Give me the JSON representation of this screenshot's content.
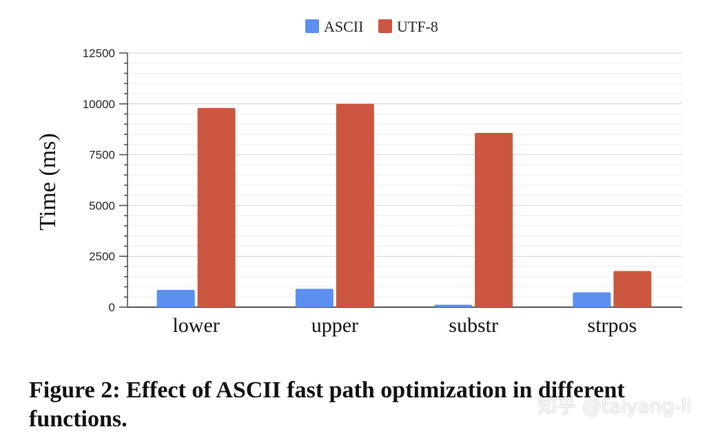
{
  "chart_data": {
    "type": "bar",
    "categories": [
      "lower",
      "upper",
      "substr",
      "strpos"
    ],
    "series": [
      {
        "name": "ASCII",
        "color": "#5b8ff0",
        "values": [
          850,
          900,
          120,
          730
        ]
      },
      {
        "name": "UTF-8",
        "color": "#cc5640",
        "values": [
          9800,
          10000,
          8570,
          1780
        ]
      }
    ],
    "ylabel": "Time (ms)",
    "ylim": [
      0,
      12500
    ],
    "yticks": [
      "0",
      "2500",
      "5000",
      "7500",
      "10000",
      "12500"
    ],
    "grid": true,
    "legend": "top-center"
  },
  "caption": "Figure 2: Effect of ASCII fast path optimization in different functions.",
  "watermark": "知乎 @taiyang-li"
}
